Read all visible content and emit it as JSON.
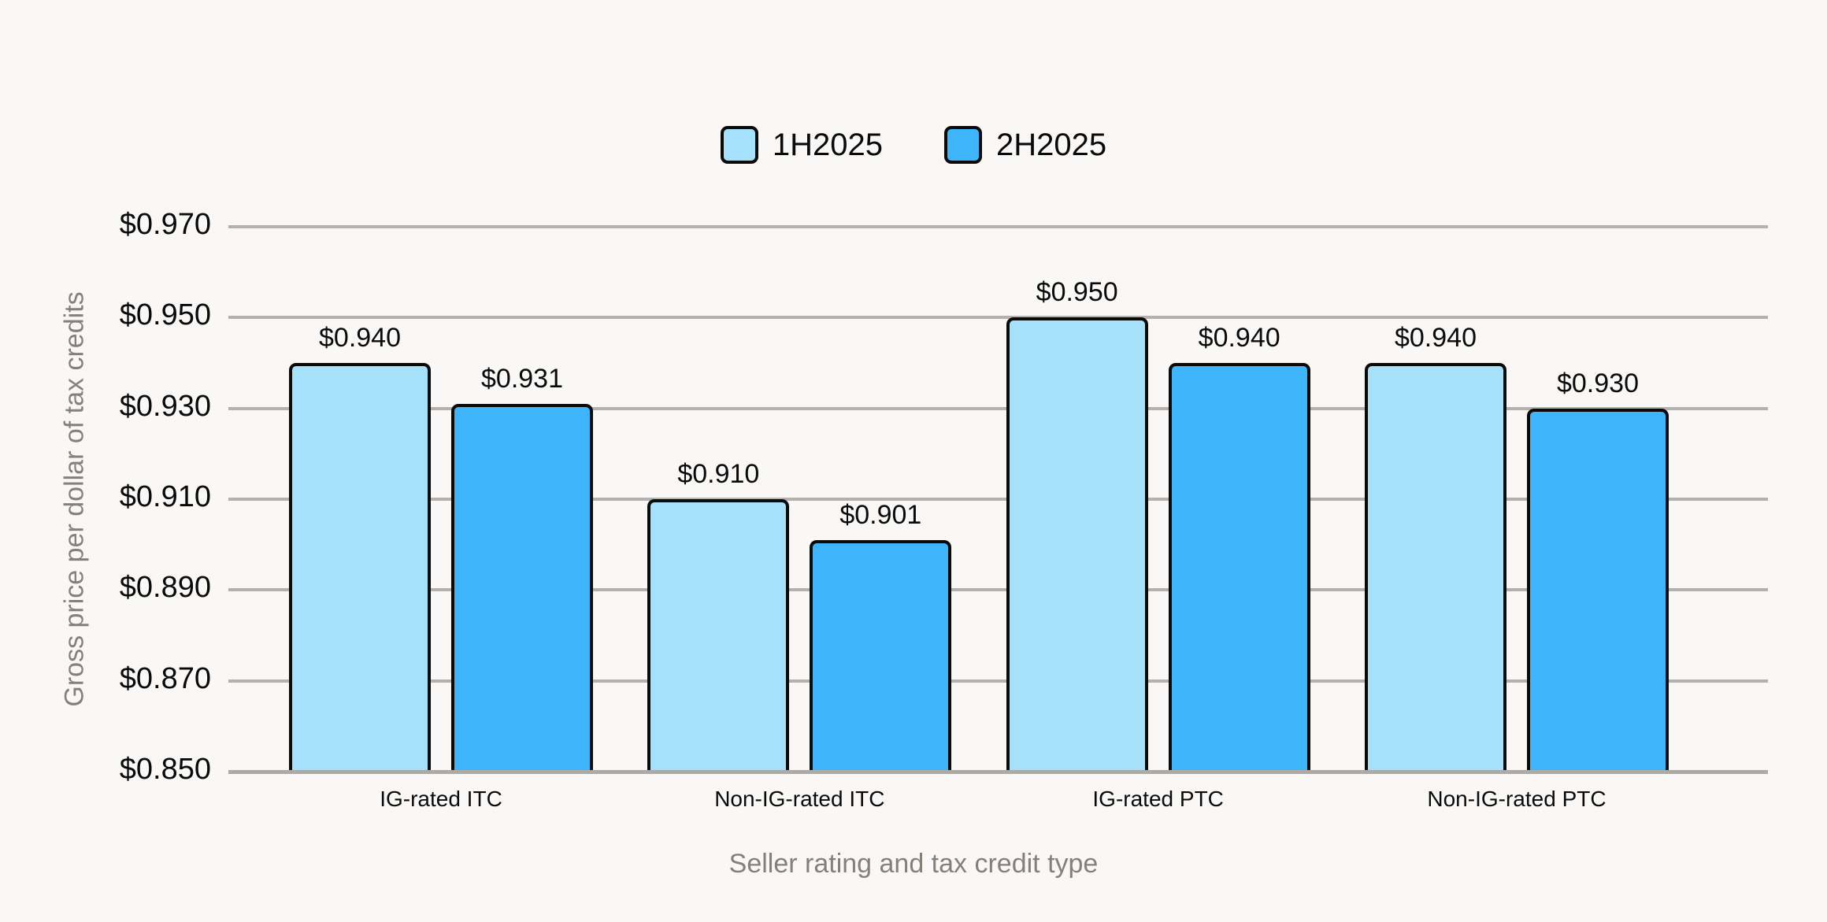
{
  "colors": {
    "background": "#F9F8F6",
    "grid": "#B3B0AD",
    "axis_line": "#ACAAA7",
    "bar_border": "#0A0A0A",
    "label_text": "#0A0A0A",
    "axis_title_text": "#85807A",
    "series_1h2025": "#A6E1FC",
    "series_2h2025": "#3EB4FB"
  },
  "legend": {
    "items": [
      {
        "label": "1H2025",
        "color": "#A6E1FC"
      },
      {
        "label": "2H2025",
        "color": "#3EB4FB"
      }
    ]
  },
  "chart_data": {
    "type": "bar",
    "title": "",
    "xlabel": "Seller rating and tax credit type",
    "ylabel": "Gross price per dollar of tax credits",
    "categories": [
      "IG-rated ITC",
      "Non-IG-rated ITC",
      "IG-rated PTC",
      "Non-IG-rated PTC"
    ],
    "series": [
      {
        "name": "1H2025",
        "color": "#A6E1FC",
        "values": [
          0.94,
          0.91,
          0.95,
          0.94
        ],
        "labels": [
          "$0.940",
          "$0.910",
          "$0.950",
          "$0.940"
        ]
      },
      {
        "name": "2H2025",
        "color": "#3EB4FB",
        "values": [
          0.931,
          0.901,
          0.94,
          0.93
        ],
        "labels": [
          "$0.931",
          "$0.901",
          "$0.940",
          "$0.930"
        ]
      }
    ],
    "ylim": [
      0.85,
      0.97
    ],
    "ytick_step": 0.02,
    "yticks": [
      "$0.850",
      "$0.870",
      "$0.890",
      "$0.910",
      "$0.930",
      "$0.950",
      "$0.970"
    ],
    "grid": true,
    "legend_position": "top-center"
  }
}
